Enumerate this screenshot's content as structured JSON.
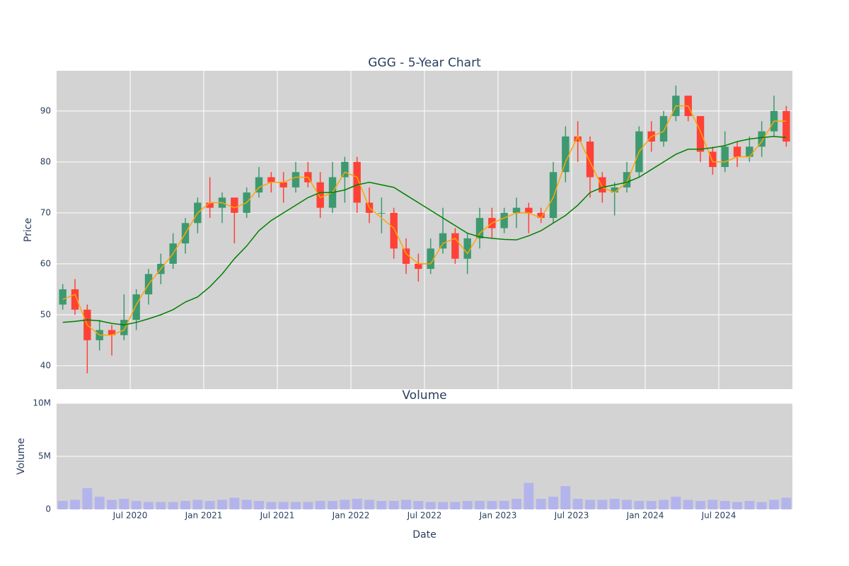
{
  "chart_data": [
    {
      "type": "candlestick",
      "title": "GGG - 5-Year Chart",
      "y_label": "Price",
      "x": [
        "2020-01",
        "2020-02",
        "2020-03",
        "2020-04",
        "2020-05",
        "2020-06",
        "2020-07",
        "2020-08",
        "2020-09",
        "2020-10",
        "2020-11",
        "2020-12",
        "2021-01",
        "2021-02",
        "2021-03",
        "2021-04",
        "2021-05",
        "2021-06",
        "2021-07",
        "2021-08",
        "2021-09",
        "2021-10",
        "2021-11",
        "2021-12",
        "2022-01",
        "2022-02",
        "2022-03",
        "2022-04",
        "2022-05",
        "2022-06",
        "2022-07",
        "2022-08",
        "2022-09",
        "2022-10",
        "2022-11",
        "2022-12",
        "2023-01",
        "2023-02",
        "2023-03",
        "2023-04",
        "2023-05",
        "2023-06",
        "2023-07",
        "2023-08",
        "2023-09",
        "2023-10",
        "2023-11",
        "2023-12",
        "2024-01",
        "2024-02",
        "2024-03",
        "2024-04",
        "2024-05",
        "2024-06",
        "2024-07",
        "2024-08",
        "2024-09",
        "2024-10",
        "2024-11",
        "2024-12"
      ],
      "open": [
        52,
        55,
        51,
        45,
        47,
        46,
        49,
        54,
        58,
        60,
        64,
        68,
        72,
        71,
        73,
        70,
        74,
        77,
        76,
        75,
        78,
        76,
        71,
        77,
        80,
        72,
        70,
        70,
        63,
        60,
        59,
        63,
        66,
        61,
        65,
        69,
        67,
        70,
        71,
        70,
        69,
        78,
        85,
        84,
        77,
        74,
        75,
        78,
        86,
        84,
        89,
        93,
        89,
        82,
        79,
        83,
        81,
        83,
        86,
        90
      ],
      "high": [
        56,
        57,
        52,
        49,
        48,
        54,
        55,
        59,
        62,
        66,
        69,
        73,
        77,
        74,
        73,
        75,
        79,
        78,
        78,
        80,
        80,
        78,
        80,
        81,
        81,
        75,
        73,
        71,
        65,
        62,
        65,
        71,
        67,
        66,
        71,
        71,
        71,
        73,
        72,
        71,
        80,
        87,
        88,
        85,
        78,
        76,
        80,
        87,
        88,
        90,
        95,
        93,
        89,
        83,
        86,
        84,
        85,
        88,
        93,
        91
      ],
      "low": [
        51,
        50,
        38.5,
        43,
        42,
        45,
        47,
        52,
        56,
        59,
        62,
        66,
        69,
        68,
        64,
        69,
        73,
        74,
        72,
        74,
        75,
        69,
        70,
        72,
        70,
        68,
        66,
        61,
        58,
        56.5,
        58,
        62,
        60,
        58,
        63,
        65,
        66,
        67,
        66,
        68,
        68,
        76,
        80,
        73,
        72,
        69.5,
        74,
        77,
        82,
        83,
        88,
        88,
        80,
        77.5,
        78,
        79,
        80,
        81,
        85,
        83
      ],
      "close": [
        55,
        51,
        45,
        47,
        46,
        49,
        54,
        58,
        60,
        64,
        68,
        72,
        71,
        73,
        70,
        74,
        77,
        76,
        75,
        78,
        76,
        71,
        77,
        80,
        72,
        70,
        70,
        63,
        60,
        59,
        63,
        66,
        61,
        65,
        69,
        67,
        70,
        71,
        70,
        69,
        78,
        85,
        84,
        77,
        74,
        75,
        78,
        86,
        84,
        89,
        93,
        89,
        82,
        79,
        83,
        81,
        83,
        86,
        90,
        84
      ],
      "increasing_color": "#3d9970",
      "decreasing_color": "#ff4136",
      "lines": [
        {
          "color": "#ffa500",
          "values": [
            53,
            54,
            48,
            46,
            46,
            47,
            52,
            56,
            59,
            62,
            66,
            70,
            72,
            72,
            71,
            72,
            75,
            76,
            76,
            77,
            77,
            73,
            74,
            78,
            77,
            71,
            69,
            67,
            62,
            60,
            60,
            64,
            65,
            62,
            66,
            68,
            69,
            70,
            70,
            69,
            73,
            80,
            85,
            80,
            75,
            74,
            76,
            82,
            85,
            86,
            91,
            91,
            86,
            80,
            80,
            81,
            81,
            84,
            88,
            88
          ]
        },
        {
          "color": "#008000",
          "values": [
            48.5,
            48.7,
            49,
            48.8,
            48.3,
            48,
            48.5,
            49.2,
            50,
            51,
            52.5,
            53.5,
            55.5,
            58,
            61,
            63.5,
            66.5,
            68.5,
            70,
            71.5,
            73,
            74,
            74,
            74.5,
            75.5,
            76,
            75.5,
            75,
            73.5,
            72,
            70.5,
            69,
            67.5,
            66,
            65.3,
            65,
            64.8,
            64.7,
            65.5,
            66.5,
            68,
            69.5,
            71.5,
            74,
            75,
            75.5,
            76,
            77,
            78.5,
            80,
            81.5,
            82.5,
            82.5,
            82.8,
            83.2,
            84,
            84.5,
            84.8,
            85,
            84.8
          ]
        }
      ],
      "xlim": [
        "2020-01",
        "2025-01"
      ],
      "xticks": [
        "2020-07",
        "2021-01",
        "2021-07",
        "2022-01",
        "2022-07",
        "2023-01",
        "2023-07",
        "2024-01",
        "2024-07"
      ],
      "ylim": [
        35.4,
        97.9
      ],
      "yticks": [
        40,
        50,
        60,
        70,
        80,
        90
      ],
      "grid": true
    },
    {
      "type": "bar",
      "title": "Volume",
      "x_label": "Date",
      "y_label": "Volume",
      "color": "#b4b4ec",
      "x": [
        "2020-01",
        "2020-02",
        "2020-03",
        "2020-04",
        "2020-05",
        "2020-06",
        "2020-07",
        "2020-08",
        "2020-09",
        "2020-10",
        "2020-11",
        "2020-12",
        "2021-01",
        "2021-02",
        "2021-03",
        "2021-04",
        "2021-05",
        "2021-06",
        "2021-07",
        "2021-08",
        "2021-09",
        "2021-10",
        "2021-11",
        "2021-12",
        "2022-01",
        "2022-02",
        "2022-03",
        "2022-04",
        "2022-05",
        "2022-06",
        "2022-07",
        "2022-08",
        "2022-09",
        "2022-10",
        "2022-11",
        "2022-12",
        "2023-01",
        "2023-02",
        "2023-03",
        "2023-04",
        "2023-05",
        "2023-06",
        "2023-07",
        "2023-08",
        "2023-09",
        "2023-10",
        "2023-11",
        "2023-12",
        "2024-01",
        "2024-02",
        "2024-03",
        "2024-04",
        "2024-05",
        "2024-06",
        "2024-07",
        "2024-08",
        "2024-09",
        "2024-10",
        "2024-11",
        "2024-12"
      ],
      "values": [
        800000,
        900000,
        2000000,
        1200000,
        900000,
        1000000,
        800000,
        700000,
        700000,
        700000,
        800000,
        900000,
        800000,
        900000,
        1100000,
        900000,
        800000,
        700000,
        700000,
        700000,
        700000,
        800000,
        800000,
        900000,
        1000000,
        900000,
        800000,
        800000,
        900000,
        800000,
        700000,
        700000,
        700000,
        800000,
        800000,
        800000,
        800000,
        1000000,
        2500000,
        1000000,
        1200000,
        2200000,
        1000000,
        900000,
        900000,
        1000000,
        900000,
        800000,
        800000,
        900000,
        1200000,
        900000,
        800000,
        900000,
        800000,
        700000,
        800000,
        700000,
        900000,
        1100000
      ],
      "xlim": [
        "2020-01",
        "2025-01"
      ],
      "xticks": [
        {
          "value": "2020-07",
          "label": "Jul 2020"
        },
        {
          "value": "2021-01",
          "label": "Jan 2021"
        },
        {
          "value": "2021-07",
          "label": "Jul 2021"
        },
        {
          "value": "2022-01",
          "label": "Jan 2022"
        },
        {
          "value": "2022-07",
          "label": "Jul 2022"
        },
        {
          "value": "2023-01",
          "label": "Jan 2023"
        },
        {
          "value": "2023-07",
          "label": "Jul 2023"
        },
        {
          "value": "2024-01",
          "label": "Jan 2024"
        },
        {
          "value": "2024-07",
          "label": "Jul 2024"
        }
      ],
      "ylim": [
        0,
        10000000
      ],
      "yticks": [
        0,
        {
          "value": 5000000,
          "label": "5M"
        },
        {
          "value": 10000000,
          "label": "10M"
        }
      ],
      "grid": true
    }
  ]
}
